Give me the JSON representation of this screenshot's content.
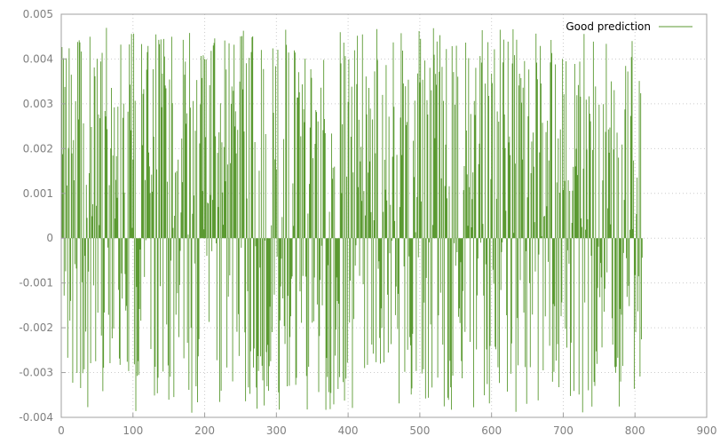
{
  "chart_data": {
    "type": "impulse",
    "x_range": [
      0,
      810
    ],
    "xlim": [
      0,
      900
    ],
    "ylim": [
      -0.004,
      0.005
    ],
    "x_ticks": [
      "0",
      "100",
      "200",
      "300",
      "400",
      "500",
      "600",
      "700",
      "800",
      "900"
    ],
    "y_ticks": [
      "-0.004",
      "-0.003",
      "-0.002",
      "-0.001",
      "0",
      "0.001",
      "0.002",
      "0.003",
      "0.004",
      "0.005"
    ],
    "grid": true,
    "legend": {
      "position": "top-right"
    },
    "series": [
      {
        "name": "Good prediction",
        "color": "#5b9a32",
        "max": 0.0047,
        "min": -0.0039,
        "note_style": "vertical impulses from zero"
      }
    ]
  }
}
